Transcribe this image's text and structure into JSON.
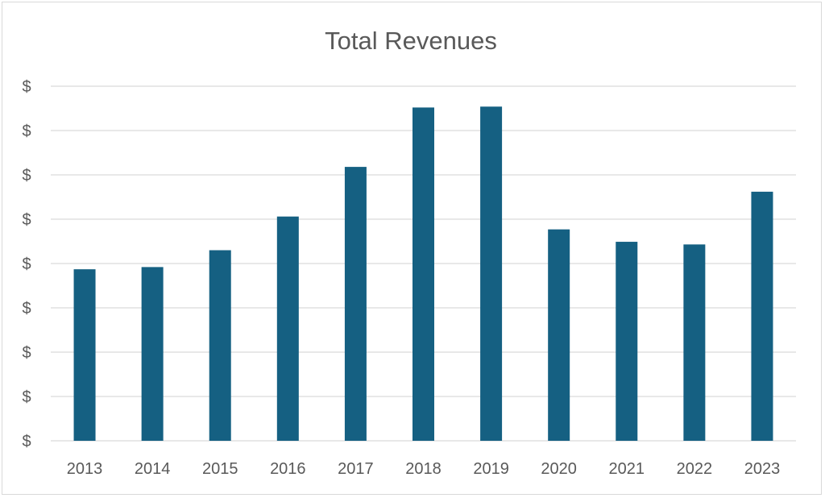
{
  "chart_data": {
    "type": "bar",
    "title": "Total Revenues",
    "xlabel": "",
    "ylabel": "",
    "categories": [
      "2013",
      "2014",
      "2015",
      "2016",
      "2017",
      "2018",
      "2019",
      "2020",
      "2021",
      "2022",
      "2023"
    ],
    "values": [
      3.87,
      3.92,
      4.3,
      5.06,
      6.18,
      7.52,
      7.54,
      4.77,
      4.49,
      4.43,
      5.62
    ],
    "y_tick_labels": [
      "$",
      "$",
      "$",
      "$",
      "$",
      "$",
      "$",
      "$",
      "$"
    ],
    "ylim": [
      0,
      8
    ],
    "grid": true,
    "legend": "none",
    "bar_color": "#156082"
  }
}
